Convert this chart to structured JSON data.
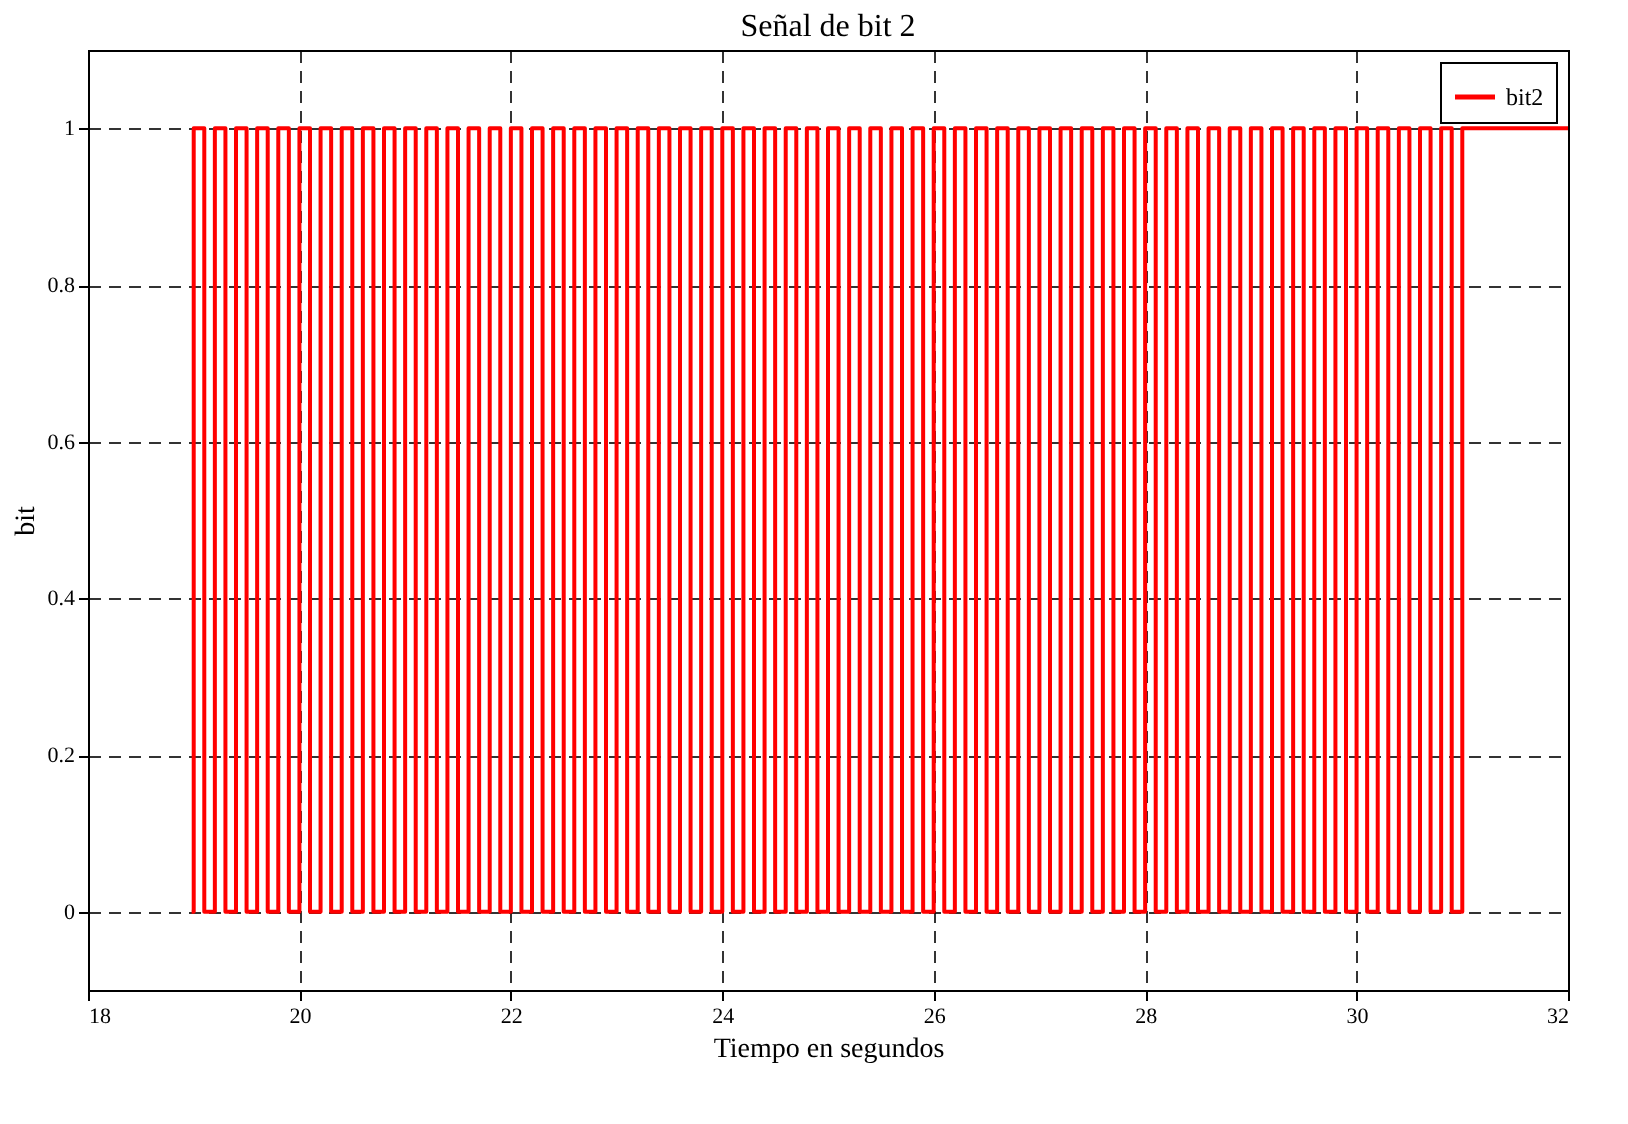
{
  "chart_data": {
    "type": "step",
    "title": "Señal de bit 2",
    "xlabel": "Tiempo en segundos",
    "ylabel": "bit",
    "x": [
      18.98,
      19.0,
      19.1,
      19.2,
      19.3,
      19.4,
      19.5,
      19.6,
      19.7,
      19.8,
      19.9,
      20.0,
      20.1,
      20.2,
      20.3,
      20.4,
      20.5,
      20.6,
      20.7,
      20.8,
      20.9,
      21.0,
      21.1,
      21.2,
      21.3,
      21.4,
      21.5,
      21.6,
      21.7,
      21.8,
      21.9,
      22.0,
      22.1,
      22.2,
      22.3,
      22.4,
      22.5,
      22.6,
      22.7,
      22.8,
      22.9,
      23.0,
      23.1,
      23.2,
      23.3,
      23.4,
      23.5,
      23.6,
      23.7,
      23.8,
      23.9,
      24.0,
      24.1,
      24.2,
      24.3,
      24.4,
      24.5,
      24.6,
      24.7,
      24.8,
      24.9,
      25.0,
      25.1,
      25.2,
      25.3,
      25.4,
      25.5,
      25.6,
      25.7,
      25.8,
      25.9,
      26.0,
      26.1,
      26.2,
      26.3,
      26.4,
      26.5,
      26.6,
      26.7,
      26.8,
      26.9,
      27.0,
      27.1,
      27.2,
      27.3,
      27.4,
      27.5,
      27.6,
      27.7,
      27.8,
      27.9,
      28.0,
      28.1,
      28.2,
      28.3,
      28.4,
      28.5,
      28.6,
      28.7,
      28.8,
      28.9,
      29.0,
      29.1,
      29.2,
      29.3,
      29.4,
      29.5,
      29.6,
      29.7,
      29.8,
      29.9,
      30.0,
      30.1,
      30.2,
      30.3,
      30.4,
      30.5,
      30.6,
      30.7,
      30.8,
      30.9,
      31.0,
      32
    ],
    "series": [
      {
        "name": "bit2",
        "color": "#ff0000",
        "values": [
          0,
          1,
          0,
          1,
          0,
          1,
          0,
          1,
          0,
          1,
          0,
          1,
          0,
          1,
          0,
          1,
          0,
          1,
          0,
          1,
          0,
          1,
          0,
          1,
          0,
          1,
          0,
          1,
          0,
          1,
          0,
          1,
          0,
          1,
          0,
          1,
          0,
          1,
          0,
          1,
          0,
          1,
          0,
          1,
          0,
          1,
          0,
          1,
          0,
          1,
          0,
          1,
          0,
          1,
          0,
          1,
          0,
          1,
          0,
          1,
          0,
          1,
          0,
          1,
          0,
          1,
          0,
          1,
          0,
          1,
          0,
          1,
          0,
          1,
          0,
          1,
          0,
          1,
          0,
          1,
          0,
          1,
          0,
          1,
          0,
          1,
          0,
          1,
          0,
          1,
          0,
          1,
          0,
          1,
          0,
          1,
          0,
          1,
          0,
          1,
          0,
          1,
          0,
          1,
          0,
          1,
          0,
          1,
          0,
          1,
          0,
          1,
          0,
          1,
          0,
          1,
          0,
          1,
          0,
          1,
          0,
          1,
          1
        ]
      }
    ],
    "xlim": [
      18,
      32
    ],
    "xticks": [
      18,
      20,
      22,
      24,
      26,
      28,
      30,
      32
    ],
    "ylim": [
      -0.1,
      1.1
    ],
    "yticks": [
      0,
      0.2,
      0.4,
      0.6,
      0.8,
      1
    ],
    "grid": true,
    "legend": "top right",
    "line_style": "solid"
  }
}
